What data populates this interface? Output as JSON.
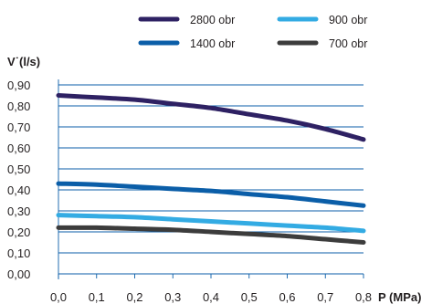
{
  "chart_data": {
    "type": "line",
    "xlabel": "P (MPa)",
    "ylabel": "V˙(l/s)",
    "xlim": [
      0,
      0.8
    ],
    "ylim": [
      0,
      0.9
    ],
    "x_ticks": [
      "0,0",
      "0,1",
      "0,2",
      "0,3",
      "0,4",
      "0,5",
      "0,6",
      "0,7",
      "0,8"
    ],
    "y_ticks": [
      "0,00",
      "0,10",
      "0,20",
      "0,30",
      "0,40",
      "0,50",
      "0,60",
      "0,70",
      "0,80",
      "0,90"
    ],
    "grid": true,
    "legend_position": "top",
    "x": [
      0.0,
      0.1,
      0.2,
      0.3,
      0.4,
      0.5,
      0.6,
      0.7,
      0.8
    ],
    "series": [
      {
        "name": "2800 obr",
        "color": "#2e2163",
        "values": [
          0.85,
          0.84,
          0.83,
          0.81,
          0.79,
          0.76,
          0.73,
          0.69,
          0.64
        ]
      },
      {
        "name": "1400 obr",
        "color": "#0b5ea8",
        "values": [
          0.43,
          0.425,
          0.415,
          0.405,
          0.395,
          0.38,
          0.365,
          0.345,
          0.325
        ]
      },
      {
        "name": "900 obr",
        "color": "#33abe3",
        "values": [
          0.28,
          0.275,
          0.27,
          0.26,
          0.25,
          0.24,
          0.23,
          0.22,
          0.205
        ]
      },
      {
        "name": "700 obr",
        "color": "#3c3c3c",
        "values": [
          0.22,
          0.22,
          0.215,
          0.21,
          0.2,
          0.19,
          0.18,
          0.165,
          0.15
        ]
      }
    ],
    "legend": [
      {
        "label": "2800 obr",
        "color": "#2e2163"
      },
      {
        "label": "900 obr",
        "color": "#33abe3"
      },
      {
        "label": "1400 obr",
        "color": "#0b5ea8"
      },
      {
        "label": "700 obr",
        "color": "#3c3c3c"
      }
    ]
  }
}
